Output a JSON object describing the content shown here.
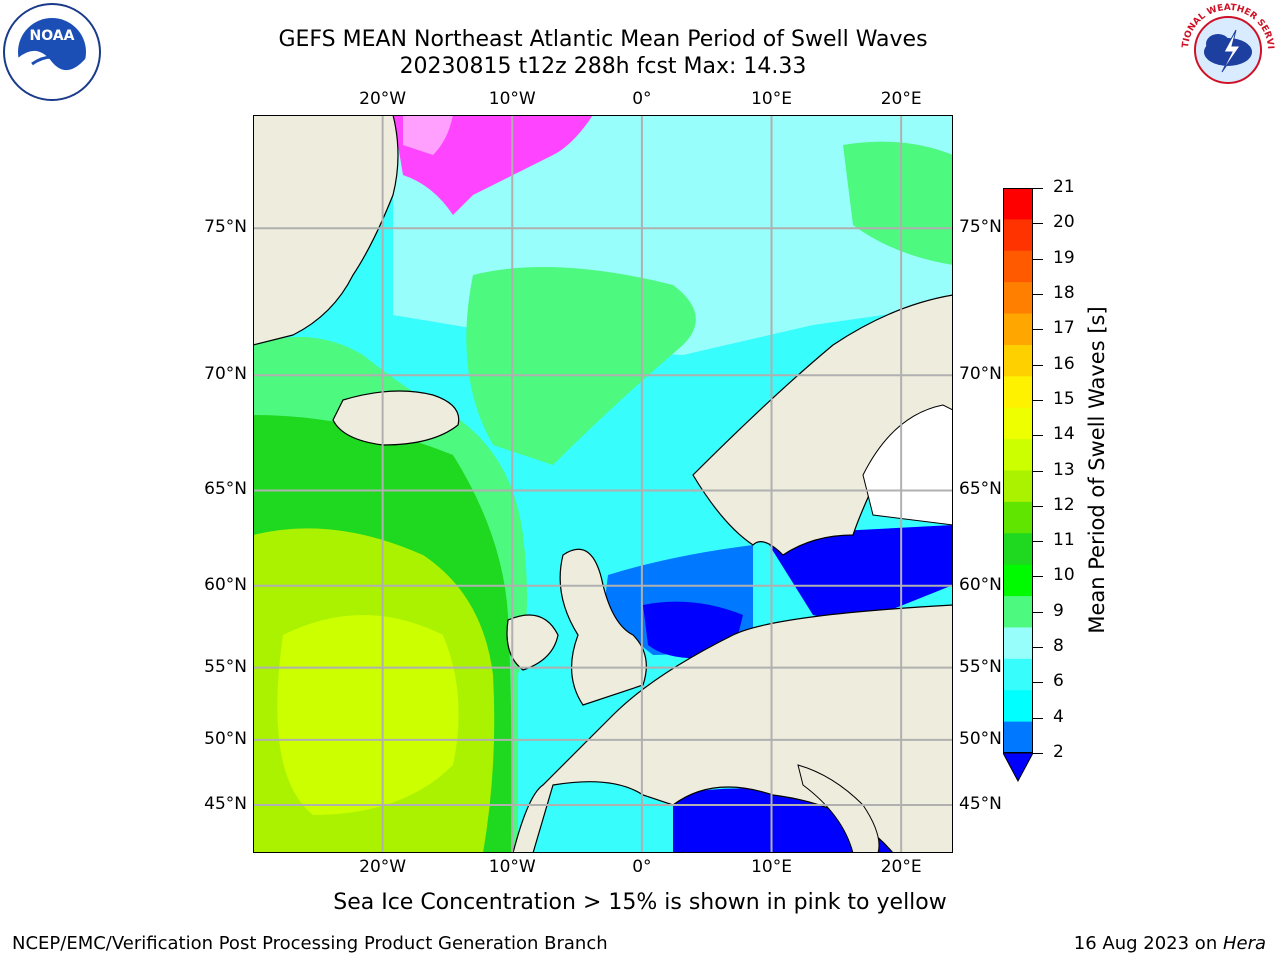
{
  "title_line1": "GEFS MEAN Northeast Atlantic Mean Period of Swell Waves",
  "title_line2": "20230815 t12z 288h fcst   Max: 14.33",
  "logos": {
    "left": "noaa-logo",
    "right": "nws-logo"
  },
  "map": {
    "lon_range": [
      -30,
      24
    ],
    "lat_range": [
      41,
      78
    ],
    "projection": "mercator",
    "lon_labels": [
      "20°W",
      "10°W",
      "0°",
      "10°E",
      "20°E"
    ],
    "lat_labels_left": [
      "75°N",
      "70°N",
      "65°N",
      "60°N",
      "55°N",
      "50°N",
      "45°N"
    ],
    "lat_labels_right": [
      "75°N",
      "70°N",
      "65°N",
      "60°N",
      "55°N",
      "50°N",
      "45°N"
    ],
    "land_color": "#eeecdd",
    "grid_color": "#b0b0b0"
  },
  "colorbar": {
    "label": "Mean Period of Swell Waves [s]",
    "ticks": [
      "21",
      "20",
      "19",
      "18",
      "17",
      "16",
      "15",
      "14",
      "13",
      "12",
      "11",
      "10",
      "9",
      "8",
      "6",
      "4",
      "2"
    ],
    "colors": [
      "#fe0000",
      "#fe3300",
      "#ff5a00",
      "#ff8000",
      "#ffa600",
      "#ffd000",
      "#fff200",
      "#eeff00",
      "#ccff00",
      "#aaf200",
      "#5fe500",
      "#1ed91f",
      "#00fa00",
      "#4df97e",
      "#98fefc",
      "#37fdfd",
      "#00ffff",
      "#0078ff"
    ],
    "under_color": "#0000ff"
  },
  "note": "Sea Ice Concentration > 15% is shown in pink to yellow",
  "footer_left": "NCEP/EMC/Verification Post Processing Product Generation Branch",
  "footer_date": "16 Aug 2023 on ",
  "footer_machine": "Hera"
}
